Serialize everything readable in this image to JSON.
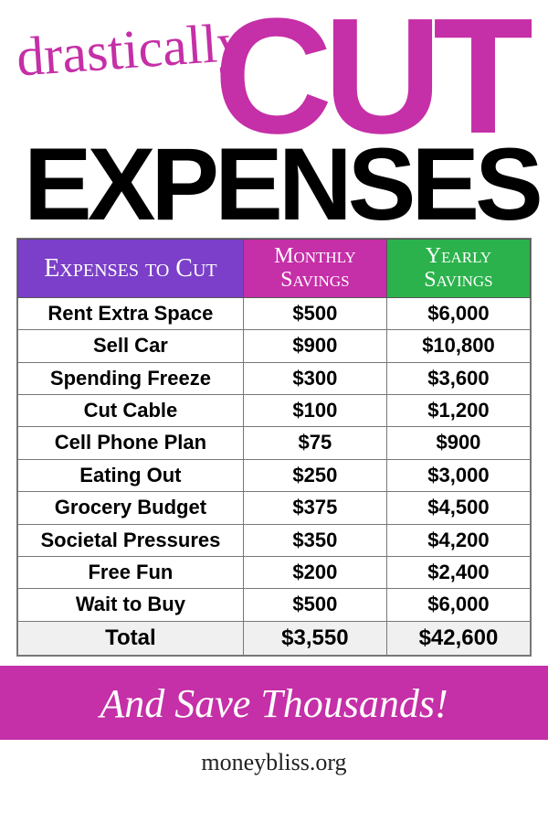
{
  "headline": {
    "pretext": "drastically",
    "big1": "CUT",
    "big2": "EXPENSES",
    "pretext_color": "#c52fa7",
    "big1_color": "#c52fa7",
    "big2_color": "#000000"
  },
  "table": {
    "type": "table",
    "columns": [
      {
        "label": "Expenses to Cut",
        "bg": "#7b3fc9",
        "width_pct": 44
      },
      {
        "label": "Monthly Savings",
        "bg": "#c52fa7",
        "width_pct": 28
      },
      {
        "label": "Yearly Savings",
        "bg": "#2bb24c",
        "width_pct": 28
      }
    ],
    "header_text_color": "#ffffff",
    "header_fontsize": 24,
    "cell_fontsize": 22,
    "cell_fontweight": 700,
    "border_color": "#777777",
    "rows": [
      {
        "expense": "Rent Extra Space",
        "monthly": "$500",
        "yearly": "$6,000"
      },
      {
        "expense": "Sell Car",
        "monthly": "$900",
        "yearly": "$10,800"
      },
      {
        "expense": "Spending Freeze",
        "monthly": "$300",
        "yearly": "$3,600"
      },
      {
        "expense": "Cut Cable",
        "monthly": "$100",
        "yearly": "$1,200"
      },
      {
        "expense": "Cell Phone Plan",
        "monthly": "$75",
        "yearly": "$900"
      },
      {
        "expense": "Eating Out",
        "monthly": "$250",
        "yearly": "$3,000"
      },
      {
        "expense": "Grocery Budget",
        "monthly": "$375",
        "yearly": "$4,500"
      },
      {
        "expense": "Societal Pressures",
        "monthly": "$350",
        "yearly": "$4,200"
      },
      {
        "expense": "Free Fun",
        "monthly": "$200",
        "yearly": "$2,400"
      },
      {
        "expense": "Wait to Buy",
        "monthly": "$500",
        "yearly": "$6,000"
      }
    ],
    "total": {
      "expense": "Total",
      "monthly": "$3,550",
      "yearly": "$42,600"
    },
    "total_bg": "#f0f0f0"
  },
  "banner": {
    "text": "And Save Thousands!",
    "bg": "#c52fa7",
    "text_color": "#ffffff",
    "fontsize": 44
  },
  "footer": {
    "url": "moneybliss.org",
    "fontsize": 26,
    "color": "#222222"
  }
}
